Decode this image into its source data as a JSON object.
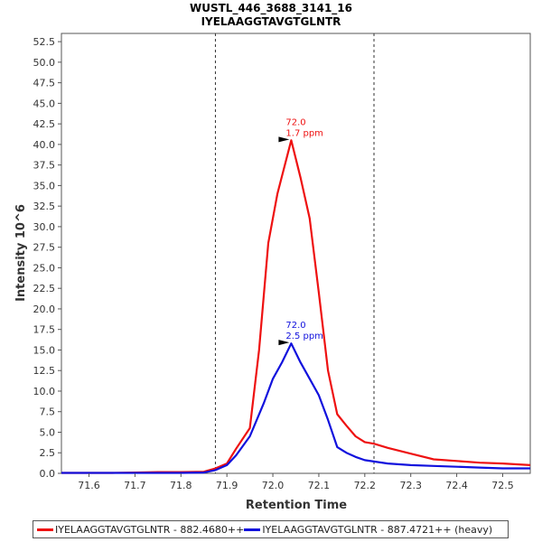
{
  "chart_data": {
    "type": "line",
    "title": "WUSTL_446_3688_3141_16",
    "subtitle": "IYELAAGGTAVGTGLNTR",
    "xlabel": "Retention Time",
    "ylabel": "Intensity 10^6",
    "xlim": [
      71.54,
      72.56
    ],
    "ylim": [
      0,
      53.5
    ],
    "x_ticks": [
      "71.6",
      "71.7",
      "71.8",
      "71.9",
      "72.0",
      "72.1",
      "72.2",
      "72.3",
      "72.4",
      "72.5"
    ],
    "y_ticks": [
      "0.0",
      "2.5",
      "5.0",
      "7.5",
      "10.0",
      "12.5",
      "15.0",
      "17.5",
      "20.0",
      "22.5",
      "25.0",
      "27.5",
      "30.0",
      "32.5",
      "35.0",
      "37.5",
      "40.0",
      "42.5",
      "45.0",
      "47.5",
      "50.0",
      "52.5"
    ],
    "grid": false,
    "legend_position": "bottom",
    "integration_bounds": [
      71.875,
      72.22
    ],
    "series": [
      {
        "name": "IYELAAGGTAVGTGLNTR - 882.4680++",
        "color": "#ee1111",
        "x": [
          71.54,
          71.6,
          71.65,
          71.7,
          71.75,
          71.8,
          71.85,
          71.875,
          71.9,
          71.92,
          71.95,
          71.97,
          71.99,
          72.01,
          72.04,
          72.06,
          72.08,
          72.1,
          72.12,
          72.14,
          72.16,
          72.18,
          72.2,
          72.22,
          72.25,
          72.3,
          72.35,
          72.4,
          72.45,
          72.5,
          72.56
        ],
        "values": [
          0.05,
          0.05,
          0.05,
          0.1,
          0.15,
          0.15,
          0.2,
          0.6,
          1.2,
          3.0,
          5.5,
          15.0,
          28.0,
          34.0,
          40.5,
          36.0,
          31.0,
          22.0,
          12.5,
          7.2,
          5.8,
          4.5,
          3.8,
          3.6,
          3.1,
          2.4,
          1.7,
          1.5,
          1.3,
          1.2,
          1.0
        ]
      },
      {
        "name": "IYELAAGGTAVGTGLNTR - 887.4721++ (heavy)",
        "color": "#1111dd",
        "x": [
          71.54,
          71.6,
          71.65,
          71.7,
          71.75,
          71.8,
          71.85,
          71.875,
          71.9,
          71.92,
          71.95,
          71.98,
          72.0,
          72.02,
          72.04,
          72.06,
          72.08,
          72.1,
          72.12,
          72.14,
          72.16,
          72.18,
          72.2,
          72.25,
          72.3,
          72.35,
          72.4,
          72.45,
          72.5,
          72.56
        ],
        "values": [
          0.05,
          0.05,
          0.05,
          0.05,
          0.05,
          0.05,
          0.1,
          0.4,
          1.0,
          2.2,
          4.5,
          8.5,
          11.5,
          13.5,
          15.8,
          13.5,
          11.5,
          9.5,
          6.5,
          3.2,
          2.5,
          2.0,
          1.6,
          1.2,
          1.0,
          0.9,
          0.8,
          0.7,
          0.6,
          0.6
        ]
      }
    ],
    "annotations": [
      {
        "series": 0,
        "x": 72.04,
        "y": 40.5,
        "line1": "72.0",
        "line2": "1.7 ppm"
      },
      {
        "series": 1,
        "x": 72.04,
        "y": 15.8,
        "line1": "72.0",
        "line2": "2.5 ppm"
      }
    ]
  }
}
